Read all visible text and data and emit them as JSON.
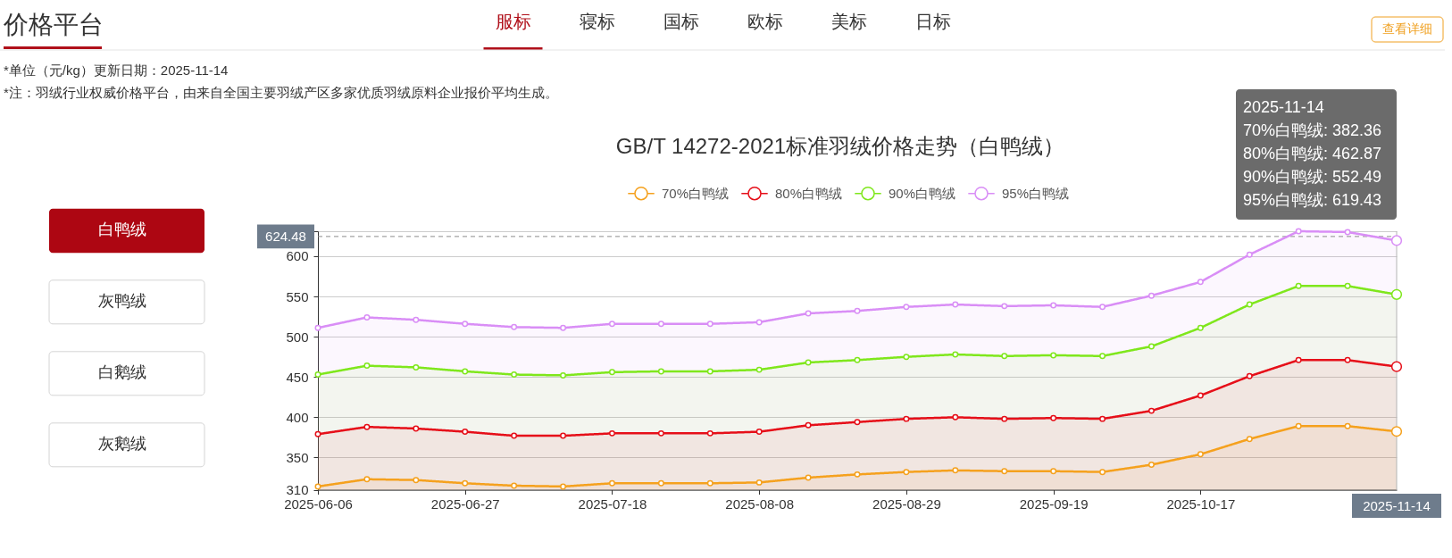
{
  "chart_data": {
    "type": "area",
    "title": "GB/T 14272-2021标准羽绒价格走势（白鸭绒）",
    "categories": [
      "2025-06-06",
      null,
      null,
      "2025-06-27",
      null,
      null,
      "2025-07-18",
      null,
      null,
      "2025-08-08",
      null,
      null,
      "2025-08-29",
      null,
      null,
      "2025-09-19",
      null,
      null,
      "2025-10-17",
      null,
      null,
      null,
      "2025-11-14"
    ],
    "series": [
      {
        "name": "70%白鸭绒",
        "color": "#f5a11e",
        "values": [
          314,
          323,
          322,
          318,
          315,
          314,
          318,
          318,
          318,
          319,
          325,
          329,
          332,
          334,
          333,
          333,
          332,
          341,
          354,
          373,
          389,
          389,
          382.36
        ]
      },
      {
        "name": "80%白鸭绒",
        "color": "#e60f19",
        "values": [
          379,
          388,
          386,
          382,
          377,
          377,
          380,
          380,
          380,
          382,
          390,
          394,
          398,
          400,
          398,
          399,
          398,
          408,
          427,
          451,
          471,
          471,
          462.87
        ]
      },
      {
        "name": "90%白鸭绒",
        "color": "#7fe71c",
        "values": [
          453,
          464,
          462,
          457,
          453,
          452,
          456,
          457,
          457,
          459,
          468,
          471,
          475,
          478,
          476,
          477,
          476,
          488,
          511,
          540,
          563,
          563,
          552.49
        ]
      },
      {
        "name": "95%白鸭绒",
        "color": "#d98ef6",
        "values": [
          511,
          524,
          521,
          516,
          512,
          511,
          516,
          516,
          516,
          518,
          529,
          532,
          537,
          540,
          538,
          539,
          537,
          551,
          568,
          602,
          631,
          630,
          619.43
        ]
      }
    ],
    "ylim": [
      310,
      631
    ],
    "yticks": [
      310,
      350,
      400,
      450,
      500,
      550,
      600,
      {
        "value": 631,
        "label": null
      }
    ],
    "grid": "y",
    "legend": "top",
    "marker": "circle",
    "line_style": "solid",
    "ref_lines": [
      {
        "axis": "y",
        "value": 624.48,
        "label": "624.48",
        "line_style": "dashed",
        "color": "#8c8c8c"
      },
      {
        "axis": "x",
        "value": "2025-11-14",
        "color": "#b4b4b4"
      }
    ],
    "annotations": [
      "价格平台",
      "服标",
      "寝标",
      "国标",
      "欧标",
      "美标",
      "日标",
      "查看详细",
      "*单位（元/kg）更新日期：2025-11-14",
      "*注：羽绒行业权威价格平台，由来自全国主要羽绒产区多家优质羽绒原料企业报价平均生成。",
      "白鸭绒",
      "灰鸭绒",
      "白鹅绒",
      "灰鹅绒",
      "2025-11-14",
      "70%白鸭绒: 382.36",
      "80%白鸭绒: 462.87",
      "90%白鸭绒: 552.49",
      "95%白鸭绒: 619.43"
    ]
  }
}
